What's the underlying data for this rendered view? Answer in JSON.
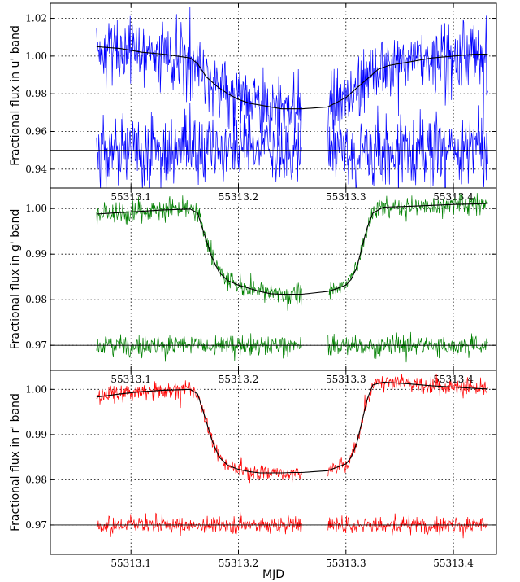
{
  "chart_data": [
    {
      "type": "line",
      "ylabel": "Fractional flux in u' band",
      "xlabel": "",
      "x_ticks": [
        "55313.1",
        "55313.2",
        "55313.3",
        "55313.4"
      ],
      "x_tick_values": [
        55313.1,
        55313.2,
        55313.3,
        55313.4
      ],
      "y_ticks": [
        "0.94",
        "0.96",
        "0.98",
        "1.00",
        "1.02"
      ],
      "y_tick_values": [
        0.94,
        0.96,
        0.98,
        1.0,
        1.02
      ],
      "xlim": [
        55313.025,
        55313.44
      ],
      "ylim": [
        0.93,
        1.028
      ],
      "grid": true,
      "gap": [
        55313.259,
        55313.283
      ],
      "x_range": [
        55313.068,
        55313.432
      ],
      "residual_level": 0.95,
      "noise": 0.009,
      "colors": {
        "data": "#0000ff",
        "model": "#000000"
      },
      "series": [
        {
          "role": "model",
          "x": [
            55313.068,
            55313.09,
            55313.11,
            55313.13,
            55313.155,
            55313.162,
            55313.17,
            55313.18,
            55313.19,
            55313.2,
            55313.21,
            55313.22,
            55313.23,
            55313.24,
            55313.25,
            55313.259,
            55313.283,
            55313.29,
            55313.3,
            55313.31,
            55313.32,
            55313.33,
            55313.34,
            55313.36,
            55313.38,
            55313.4,
            55313.42,
            55313.432
          ],
          "y": [
            1.005,
            1.004,
            1.002,
            1.001,
            0.999,
            0.996,
            0.989,
            0.984,
            0.98,
            0.977,
            0.975,
            0.974,
            0.973,
            0.972,
            0.972,
            0.972,
            0.973,
            0.975,
            0.978,
            0.983,
            0.988,
            0.993,
            0.995,
            0.997,
            0.999,
            1.0,
            1.001,
            1.001
          ]
        }
      ]
    },
    {
      "type": "line",
      "ylabel": "Fractional flux in g' band",
      "xlabel": "",
      "x_ticks": [
        "55313.1",
        "55313.2",
        "55313.3",
        "55313.4"
      ],
      "x_tick_values": [
        55313.1,
        55313.2,
        55313.3,
        55313.4
      ],
      "y_ticks": [
        "0.97",
        "0.98",
        "0.99",
        "1.00"
      ],
      "y_tick_values": [
        0.97,
        0.98,
        0.99,
        1.0
      ],
      "xlim": [
        55313.025,
        55313.44
      ],
      "ylim": [
        0.9645,
        1.0045
      ],
      "grid": true,
      "gap": [
        55313.259,
        55313.283
      ],
      "x_range": [
        55313.068,
        55313.432
      ],
      "residual_level": 0.97,
      "noise": 0.0011,
      "colors": {
        "data": "#008000",
        "model": "#000000"
      },
      "series": [
        {
          "role": "model",
          "x": [
            55313.068,
            55313.09,
            55313.11,
            55313.13,
            55313.155,
            55313.162,
            55313.168,
            55313.175,
            55313.182,
            55313.19,
            55313.2,
            55313.21,
            55313.22,
            55313.23,
            55313.24,
            55313.25,
            55313.259,
            55313.283,
            55313.29,
            55313.3,
            55313.305,
            55313.31,
            55313.315,
            55313.32,
            55313.325,
            55313.335,
            55313.36,
            55313.38,
            55313.4,
            55313.42,
            55313.432
          ],
          "y": [
            0.9988,
            0.9991,
            0.9994,
            0.9997,
            0.9999,
            0.999,
            0.9945,
            0.9895,
            0.986,
            0.9842,
            0.9832,
            0.9825,
            0.9818,
            0.9813,
            0.9812,
            0.9812,
            0.9812,
            0.9818,
            0.9823,
            0.9832,
            0.9845,
            0.987,
            0.9915,
            0.996,
            0.999,
            1.0003,
            1.0005,
            1.0007,
            1.0009,
            1.001,
            1.0011
          ]
        }
      ]
    },
    {
      "type": "line",
      "ylabel": "Fractional flux in r' band",
      "xlabel": "MJD",
      "x_ticks": [
        "55313.1",
        "55313.2",
        "55313.3",
        "55313.4"
      ],
      "x_tick_values": [
        55313.1,
        55313.2,
        55313.3,
        55313.4
      ],
      "y_ticks": [
        "0.97",
        "0.98",
        "0.99",
        "1.00"
      ],
      "y_tick_values": [
        0.97,
        0.98,
        0.99,
        1.0
      ],
      "xlim": [
        55313.025,
        55313.44
      ],
      "ylim": [
        0.9635,
        1.0042
      ],
      "grid": true,
      "gap": [
        55313.259,
        55313.283
      ],
      "x_range": [
        55313.068,
        55313.432
      ],
      "residual_level": 0.97,
      "noise": 0.0009,
      "colors": {
        "data": "#ff0000",
        "model": "#000000"
      },
      "series": [
        {
          "role": "model",
          "x": [
            55313.068,
            55313.09,
            55313.11,
            55313.13,
            55313.155,
            55313.162,
            55313.168,
            55313.175,
            55313.182,
            55313.19,
            55313.2,
            55313.21,
            55313.22,
            55313.23,
            55313.24,
            55313.25,
            55313.259,
            55313.283,
            55313.29,
            55313.3,
            55313.305,
            55313.31,
            55313.315,
            55313.32,
            55313.325,
            55313.335,
            55313.36,
            55313.38,
            55313.4,
            55313.42,
            55313.432
          ],
          "y": [
            0.9983,
            0.999,
            0.9995,
            0.9998,
            1.0,
            0.999,
            0.9945,
            0.989,
            0.985,
            0.9832,
            0.9823,
            0.9818,
            0.9815,
            0.9815,
            0.9815,
            0.9816,
            0.9816,
            0.982,
            0.9826,
            0.9835,
            0.985,
            0.988,
            0.993,
            0.998,
            1.001,
            1.0016,
            1.0012,
            1.0008,
            1.0005,
            1.0002,
            1.0001
          ]
        }
      ]
    }
  ]
}
